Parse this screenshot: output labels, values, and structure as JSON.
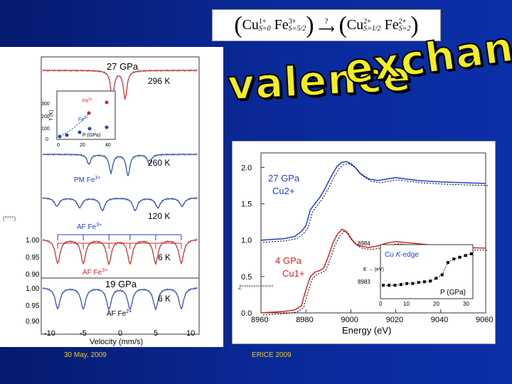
{
  "formula": {
    "left_open": "(",
    "cu_left": "Cu",
    "cu_left_charge": "1+",
    "cu_left_sub": "S=0",
    "fe_left": "Fe",
    "fe_left_charge": "3+",
    "fe_left_sub": "S=5/2",
    "left_close": ")",
    "question": "?",
    "right_open": "(",
    "cu_right": "Cu",
    "cu_right_charge": "2+",
    "cu_right_sub": "S=1/2",
    "fe_right": "Fe",
    "fe_right_charge": "2+",
    "fe_right_sub": "S=2",
    "right_close": ")"
  },
  "title": {
    "word1": "valence",
    "word2": "exchange"
  },
  "colors": {
    "background": "#0a2a9a",
    "title_fill": "#f2ee20",
    "red": "#e02020",
    "blue": "#2040d0",
    "gray": "#909090"
  },
  "left_panel": {
    "labels": {
      "p27": "27 GPa",
      "t296": "296 K",
      "t260": "260 K",
      "pm": "PM Fe",
      "pm_sup": "3+",
      "t120": "120 K",
      "af1": "AF Fe",
      "af1_sup": "3+",
      "t6a": "6 K",
      "af2": "AF Fe",
      "af2_sup": "3+",
      "p19": "19 GPa",
      "t6b": "6 K",
      "af3": "AF Fe",
      "af3_sup": "2+",
      "left_axis_garble": "(°°°°)"
    },
    "y_ticks": [
      "1.00",
      "0.95",
      "0.90",
      "1.00",
      "0.95",
      "0.90"
    ],
    "x_ticks": [
      "-10",
      "-5",
      "0",
      "5",
      "10"
    ],
    "x_label": "Velocity (mm/s)",
    "inset": {
      "y_ticks": [
        "300",
        "200",
        "100",
        "0"
      ],
      "x_ticks": [
        "0",
        "20",
        "40"
      ],
      "y_label": "T (K)",
      "x_label": "P (GPa)",
      "fe3": "Fe",
      "fe3_sup": "3+",
      "fe2": "Fe",
      "fe2_sup": "2+"
    }
  },
  "chart_data": {
    "type": "line",
    "xlabel": "Energy (eV)",
    "ylabel": "",
    "xlim": [
      8960,
      9060
    ],
    "ylim": [
      0.0,
      2.0
    ],
    "x_ticks": [
      "8960",
      "8980",
      "9000",
      "9020",
      "9040",
      "9060"
    ],
    "y_ticks": [
      "2.0",
      "1.5",
      "1.0",
      "0.5",
      "0.0"
    ],
    "annotations": [
      "27 GPa",
      "Cu2+",
      "4 GPa",
      "Cu1+"
    ],
    "series": [
      {
        "color": "#2040d0",
        "x": [
          8960,
          8970,
          8975,
          8978,
          8980,
          8982,
          8984,
          8986,
          8988,
          8990,
          8992,
          8994,
          8996,
          8998,
          9000,
          9002,
          9004,
          9008,
          9012,
          9016,
          9020,
          9030,
          9040,
          9050,
          9060
        ],
        "values": [
          1.0,
          1.02,
          1.05,
          1.12,
          1.2,
          1.42,
          1.5,
          1.58,
          1.68,
          1.8,
          1.92,
          2.02,
          2.07,
          2.08,
          2.05,
          2.0,
          1.92,
          1.84,
          1.82,
          1.84,
          1.86,
          1.82,
          1.8,
          1.79,
          1.78
        ]
      },
      {
        "color": "#e02020",
        "x": [
          8960,
          8970,
          8975,
          8978,
          8980,
          8982,
          8984,
          8986,
          8988,
          8990,
          8992,
          8994,
          8996,
          8998,
          9000,
          9002,
          9004,
          9008,
          9012,
          9016,
          9020,
          9030,
          9040,
          9050,
          9060
        ],
        "values": [
          0.0,
          0.02,
          0.04,
          0.1,
          0.32,
          0.5,
          0.56,
          0.58,
          0.62,
          0.78,
          0.96,
          1.08,
          1.15,
          1.12,
          1.02,
          0.95,
          0.92,
          0.9,
          0.92,
          0.96,
          0.98,
          0.95,
          0.92,
          0.9,
          0.89
        ]
      }
    ]
  },
  "right_panel": {
    "left_axis_garble": "Z°°°°°°°°°°°°°°",
    "inset": {
      "title": "Cu K-edge",
      "title_pre": "Cu ",
      "title_k": "K",
      "title_post": "-edge",
      "y_ticks": [
        "8984",
        "8983"
      ],
      "x_ticks": [
        "0",
        "10",
        "20",
        "30"
      ],
      "x_label": "P (GPa)",
      "y_garble": "E → (eV)",
      "data_x": [
        0,
        2,
        4,
        6,
        8,
        10,
        12,
        14,
        16,
        18,
        20,
        22,
        24,
        26,
        28,
        30
      ],
      "data_y": [
        8983.1,
        8983.1,
        8983.1,
        8983.12,
        8983.15,
        8983.15,
        8983.18,
        8983.2,
        8983.22,
        8983.3,
        8983.4,
        8983.75,
        8983.85,
        8983.9,
        8983.95,
        8984.0
      ],
      "ylim": [
        8982.9,
        8984.2
      ]
    }
  },
  "footer": {
    "left": "30 May, 2009",
    "right": "ERICE 2009"
  }
}
